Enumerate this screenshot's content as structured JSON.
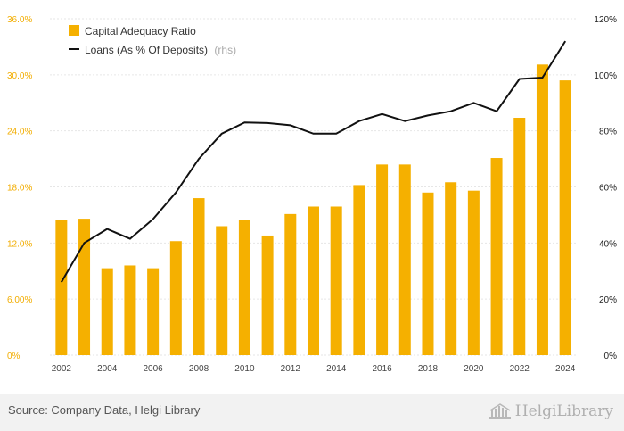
{
  "chart_data": {
    "type": "bar",
    "categories": [
      "2002",
      "2003",
      "2004",
      "2005",
      "2006",
      "2007",
      "2008",
      "2009",
      "2010",
      "2011",
      "2012",
      "2013",
      "2014",
      "2015",
      "2016",
      "2017",
      "2018",
      "2019",
      "2020",
      "2021",
      "2022",
      "2023",
      "2024"
    ],
    "series": [
      {
        "name": "Capital Adequacy Ratio",
        "type": "bar",
        "axis": "left",
        "color": "#f5b000",
        "values": [
          14.5,
          14.6,
          9.3,
          9.6,
          9.3,
          12.2,
          16.8,
          13.8,
          14.5,
          12.8,
          15.1,
          15.9,
          15.9,
          18.2,
          20.4,
          20.4,
          17.4,
          18.5,
          17.6,
          21.1,
          25.4,
          31.1,
          29.4
        ]
      },
      {
        "name": "Loans (As % Of Deposits)",
        "note": "(rhs)",
        "type": "line",
        "axis": "right",
        "color": "#111111",
        "values": [
          26,
          40,
          45,
          41.5,
          48.5,
          58,
          70,
          79,
          83,
          82.8,
          82,
          79,
          79,
          83.5,
          86,
          83.5,
          85.5,
          87,
          90,
          87,
          98.5,
          99,
          112
        ]
      }
    ],
    "y_left": {
      "range": [
        0,
        36
      ],
      "ticks": [
        0,
        6,
        12,
        18,
        24,
        30,
        36
      ],
      "tick_labels": [
        "0%",
        "6.00%",
        "12.0%",
        "18.0%",
        "24.0%",
        "30.0%",
        "36.0%"
      ]
    },
    "y_right": {
      "range": [
        0,
        120
      ],
      "ticks": [
        0,
        20,
        40,
        60,
        80,
        100,
        120
      ],
      "tick_labels": [
        "0%",
        "20%",
        "40%",
        "60%",
        "80%",
        "100%",
        "120%"
      ]
    },
    "x_tick_labels": [
      "2002",
      "2004",
      "2006",
      "2008",
      "2010",
      "2012",
      "2014",
      "2016",
      "2018",
      "2020",
      "2022",
      "2024"
    ],
    "grid": true,
    "legend_position": "top-left"
  },
  "footer": {
    "source": "Source: Company Data, Helgi Library",
    "logo_text": "HelgiLibrary"
  }
}
